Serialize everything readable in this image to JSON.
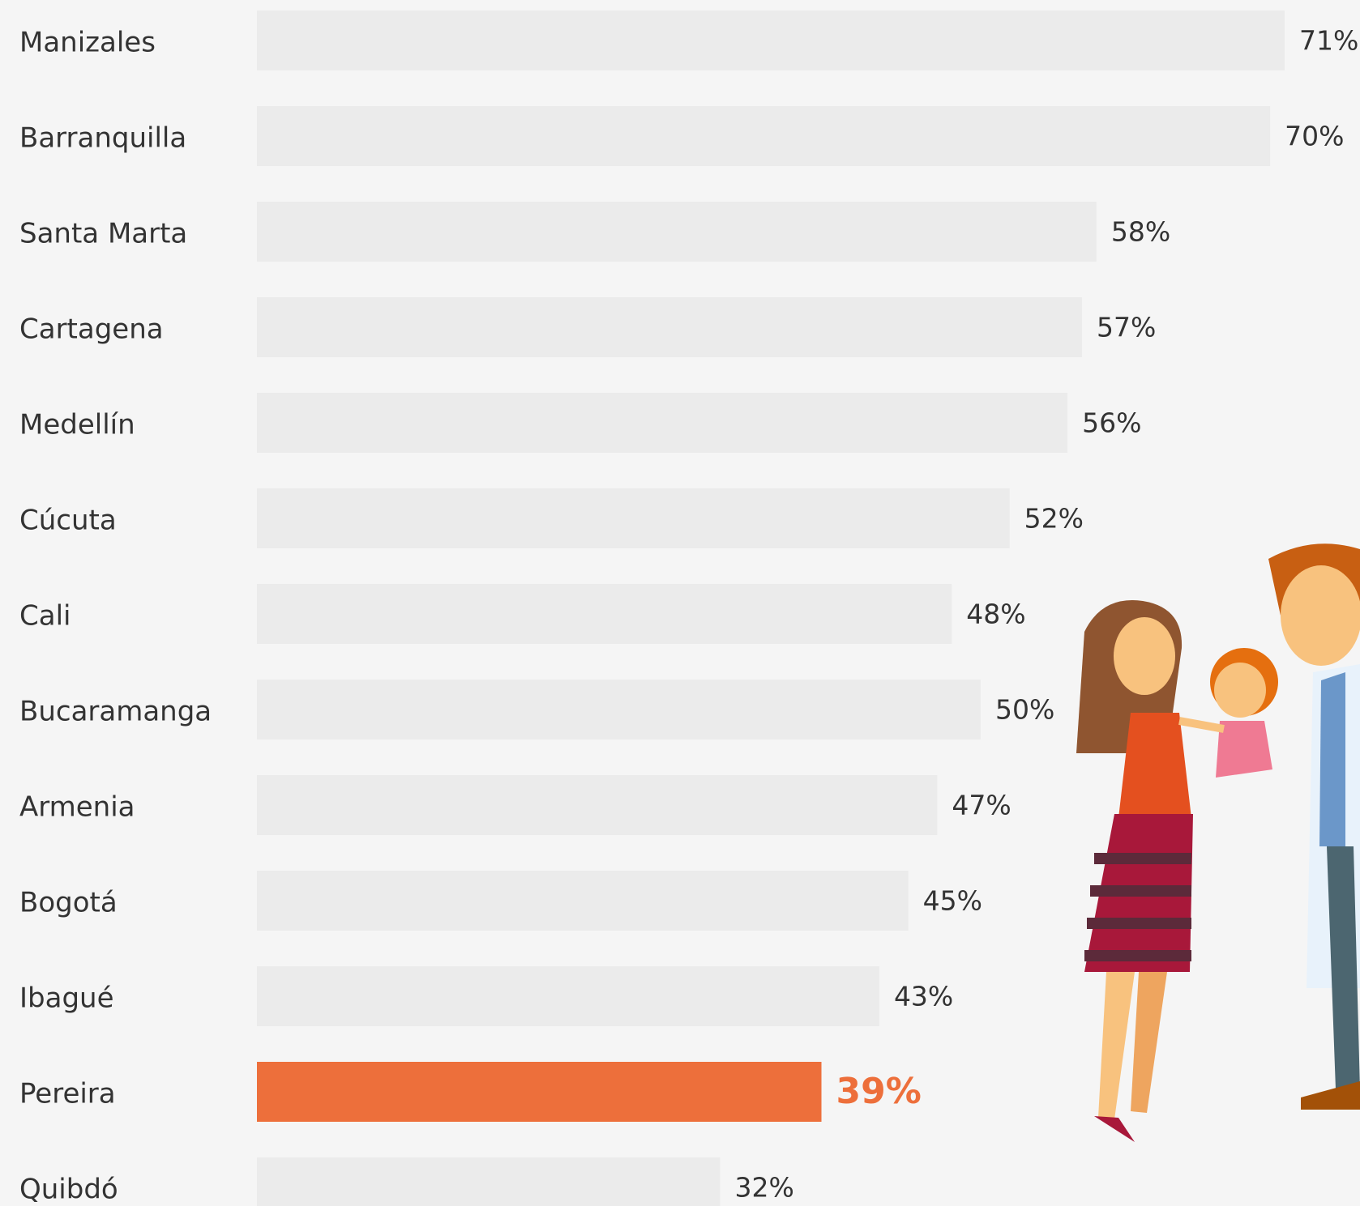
{
  "chart_data": {
    "type": "hbar",
    "categories": [
      "Manizales",
      "Barranquilla",
      "Santa Marta",
      "Cartagena",
      "Medellín",
      "Cúcuta",
      "Cali",
      "Bucaramanga",
      "Armenia",
      "Bogotá",
      "Ibagué",
      "Pereira",
      "Quibdó"
    ],
    "values": [
      71,
      70,
      58,
      57,
      56,
      52,
      48,
      50,
      47,
      45,
      43,
      39,
      32
    ],
    "value_labels": [
      "71%",
      "70%",
      "58%",
      "57%",
      "56%",
      "52%",
      "48%",
      "50%",
      "47%",
      "45%",
      "43%",
      "39%",
      "32%"
    ],
    "colors": [
      "#ebebeb",
      "#ebebeb",
      "#ebebeb",
      "#ebebeb",
      "#ebebeb",
      "#ebebeb",
      "#ebebeb",
      "#ebebeb",
      "#ebebeb",
      "#ebebeb",
      "#ebebeb",
      "#ed6f3b",
      "#ebebeb"
    ],
    "label_colors": [
      "#333333",
      "#333333",
      "#333333",
      "#333333",
      "#333333",
      "#333333",
      "#333333",
      "#333333",
      "#333333",
      "#333333",
      "#333333",
      "#ed6f3b",
      "#333333"
    ]
  }
}
